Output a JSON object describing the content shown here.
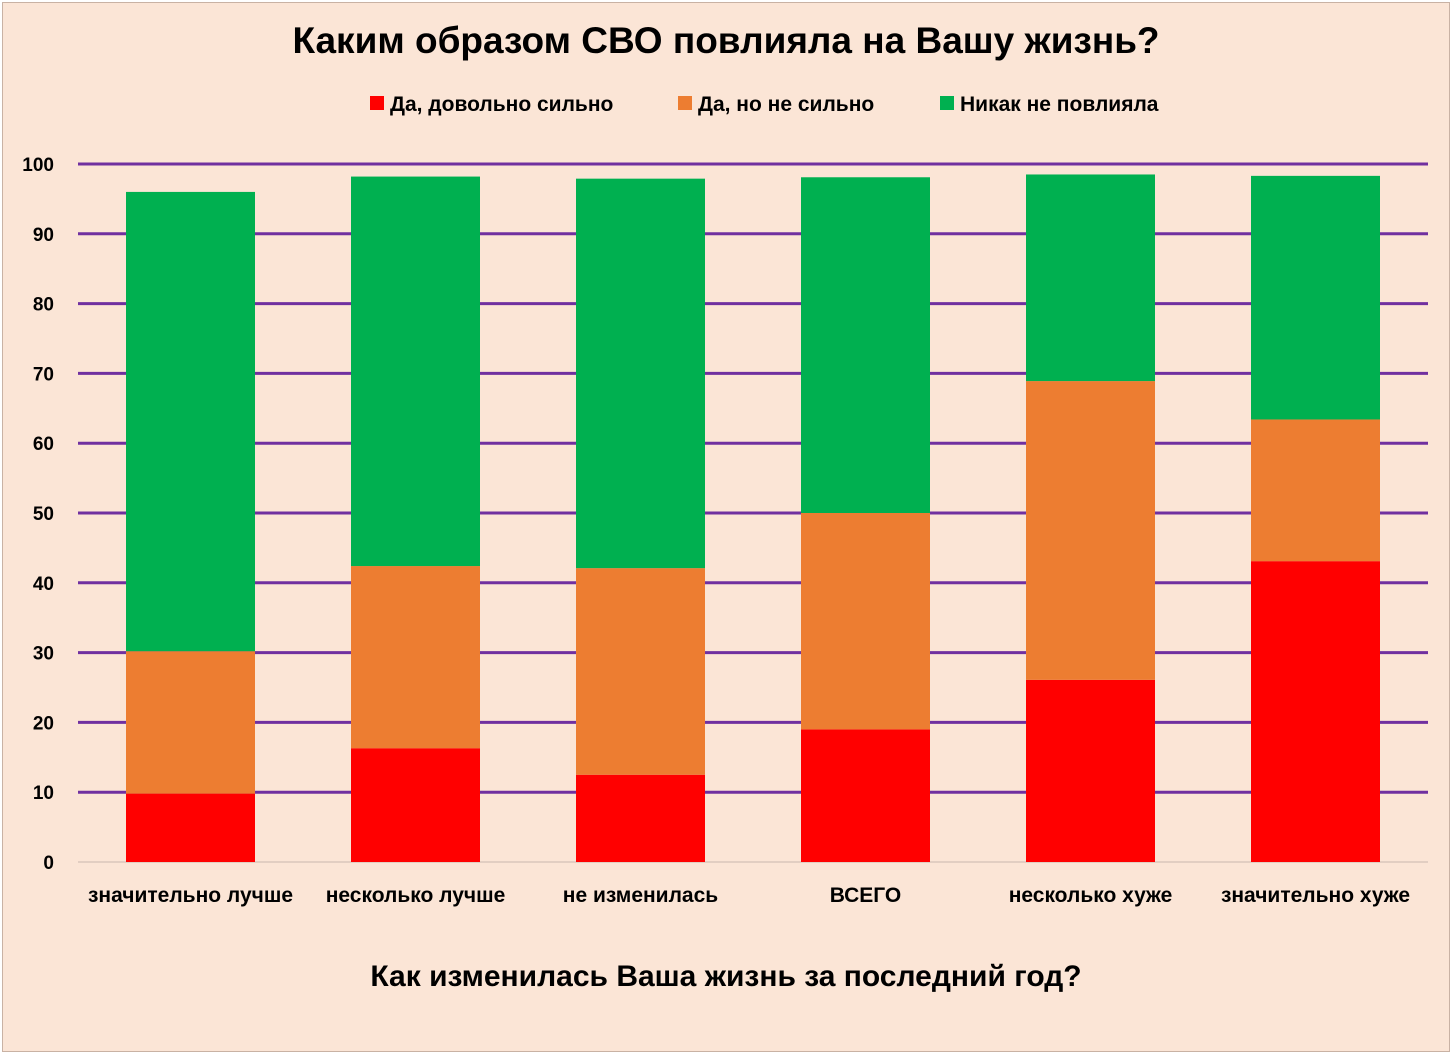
{
  "chart_data": {
    "type": "bar",
    "stacked": true,
    "title": "Каким образом СВО повлияла на Вашу жизнь?",
    "xlabel": "Как изменилась Ваша жизнь за последний год?",
    "ylabel": "",
    "ylim": [
      0,
      100
    ],
    "yticks": [
      "0",
      "10",
      "20",
      "30",
      "40",
      "50",
      "60",
      "70",
      "80",
      "90",
      "100"
    ],
    "grid": true,
    "legend_position": "top",
    "categories": [
      "значительно лучше",
      "несколько лучше",
      "не изменилась",
      "ВСЕГО",
      "несколько хуже",
      "значительно хуже"
    ],
    "series": [
      {
        "name": "Да, довольно сильно",
        "color": "#ff0000",
        "values": [
          9.8,
          16.3,
          12.5,
          19.0,
          26.1,
          43.1
        ]
      },
      {
        "name": "Да, но не сильно",
        "color": "#ed7d31",
        "values": [
          20.4,
          26.1,
          29.6,
          31.0,
          42.8,
          20.3
        ]
      },
      {
        "name": "Никак не повлияла",
        "color": "#00b050",
        "values": [
          65.8,
          55.8,
          55.8,
          48.1,
          29.6,
          34.9
        ]
      }
    ],
    "gridline_color": "#7030a0"
  }
}
